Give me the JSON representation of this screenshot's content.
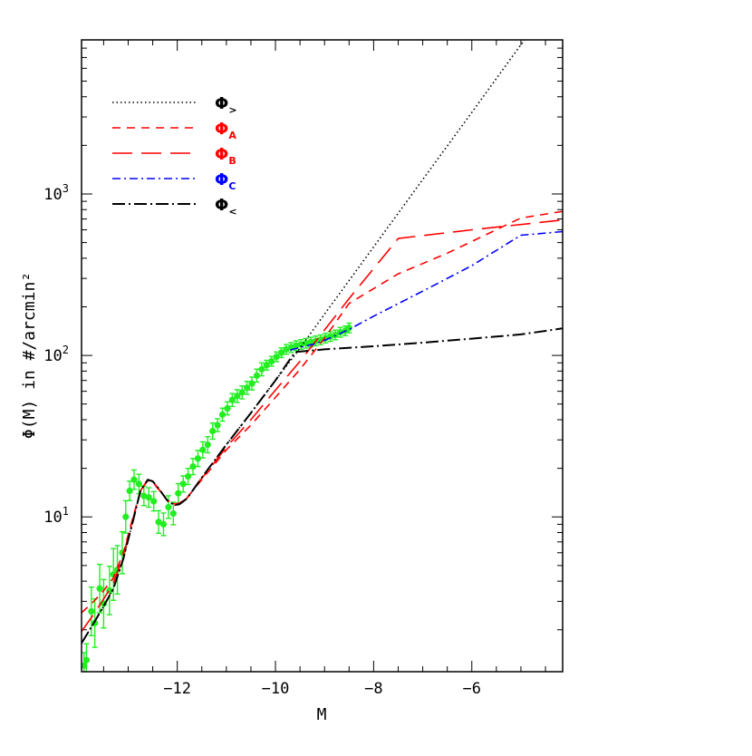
{
  "chart_data": {
    "type": "line",
    "xlabel": "M",
    "ylabel": "Φ(M) in #/arcmin²",
    "xlim": [
      -13.95,
      -4.15
    ],
    "ylim": [
      1.1,
      9000
    ],
    "yscale": "log",
    "x_tick_labels": [
      {
        "value": -12,
        "text": "−12"
      },
      {
        "value": -10,
        "text": "−10"
      },
      {
        "value": -8,
        "text": "−8"
      },
      {
        "value": -6,
        "text": "−6"
      }
    ],
    "y_tick_labels": [
      {
        "value": 10,
        "base": "10",
        "exp": "1"
      },
      {
        "value": 100,
        "base": "10",
        "exp": "2"
      },
      {
        "value": 1000,
        "base": "10",
        "exp": "3"
      }
    ],
    "legend_position": "top-left",
    "series": [
      {
        "name": "Φ",
        "sub": ">",
        "color": "#000000",
        "dash": "1.5,3",
        "width": 1.6,
        "x": [
          -13.95,
          -13.7,
          -13.5,
          -13.3,
          -13.1,
          -12.9,
          -12.75,
          -12.6,
          -12.5,
          -12.35,
          -12.2,
          -12.05,
          -11.95,
          -11.8,
          -11.5,
          -11.0,
          -10.5,
          -10.0,
          -9.6,
          -9.0,
          -8.0,
          -7.0,
          -6.0,
          -5.0,
          -4.75
        ],
        "y": [
          1.65,
          2.2,
          2.8,
          3.6,
          5.5,
          9.5,
          14.5,
          17.0,
          16.6,
          14.6,
          12.6,
          11.8,
          12.0,
          13.0,
          17.5,
          28,
          44,
          70,
          101,
          180,
          470,
          1230,
          3200,
          8400,
          10500
        ]
      },
      {
        "name": "Φ",
        "sub": "A",
        "color": "#ff0000",
        "dash": "9,7",
        "width": 1.6,
        "x": [
          -13.95,
          -13.7,
          -13.5,
          -13.3,
          -13.1,
          -12.9,
          -12.75,
          -12.6,
          -12.5,
          -12.35,
          -12.2,
          -12.05,
          -11.95,
          -11.8,
          -11.5,
          -11.0,
          -10.5,
          -10.0,
          -9.5,
          -9.0,
          -8.5,
          -7.5,
          -6.5,
          -5.0,
          -4.15
        ],
        "y": [
          2.55,
          3.0,
          3.5,
          4.2,
          6.0,
          10.0,
          14.5,
          16.8,
          16.4,
          14.4,
          12.7,
          12.0,
          12.2,
          13.2,
          17.0,
          26,
          37,
          55,
          82,
          128,
          210,
          320,
          430,
          710,
          780
        ]
      },
      {
        "name": "Φ",
        "sub": "B",
        "color": "#ff0000",
        "dash": "22,10",
        "width": 1.6,
        "x": [
          -13.95,
          -13.7,
          -13.5,
          -13.3,
          -13.1,
          -12.9,
          -12.75,
          -12.6,
          -12.5,
          -12.35,
          -12.2,
          -12.05,
          -11.95,
          -11.8,
          -11.5,
          -11.0,
          -10.5,
          -10.0,
          -9.5,
          -8.5,
          -7.5,
          -6.0,
          -4.15
        ],
        "y": [
          1.95,
          2.5,
          3.1,
          3.9,
          5.8,
          9.8,
          14.5,
          17.0,
          16.6,
          14.5,
          12.7,
          12.0,
          12.1,
          13.1,
          17.3,
          27,
          40,
          61,
          92,
          225,
          530,
          600,
          690
        ]
      },
      {
        "name": "Φ",
        "sub": "C",
        "color": "#0000ff",
        "dash": "9,4,2,4",
        "width": 1.6,
        "x": [
          -9.7,
          -9.5,
          -9.2,
          -9.0,
          -8.5,
          -8.0,
          -7.0,
          -6.0,
          -5.0,
          -4.15
        ],
        "y": [
          108,
          112,
          118,
          124,
          145,
          175,
          250,
          360,
          555,
          585
        ]
      },
      {
        "name": "Φ",
        "sub": "<",
        "color": "#000000",
        "dash": "14,4,2,4",
        "width": 2.0,
        "x": [
          -13.95,
          -13.7,
          -13.5,
          -13.3,
          -13.1,
          -12.9,
          -12.75,
          -12.6,
          -12.5,
          -12.35,
          -12.2,
          -12.05,
          -11.95,
          -11.8,
          -11.5,
          -11.0,
          -10.5,
          -10.0,
          -9.6,
          -9.0,
          -8.0,
          -7.0,
          -6.0,
          -5.0,
          -4.15
        ],
        "y": [
          1.65,
          2.2,
          2.8,
          3.6,
          5.5,
          9.5,
          14.5,
          17.0,
          16.6,
          14.6,
          12.6,
          11.8,
          12.0,
          13.0,
          17.5,
          28,
          44,
          70,
          105,
          109,
          114,
          120,
          127,
          135,
          147
        ]
      }
    ],
    "points": {
      "color": "#22ee22",
      "x": [
        -13.9,
        -13.85,
        -13.75,
        -13.68,
        -13.58,
        -13.5,
        -13.38,
        -13.3,
        -13.22,
        -13.12,
        -13.05,
        -12.97,
        -12.88,
        -12.78,
        -12.68,
        -12.58,
        -12.48,
        -12.38,
        -12.28,
        -12.18,
        -12.08,
        -11.98,
        -11.88,
        -11.78,
        -11.68,
        -11.58,
        -11.48,
        -11.38,
        -11.28,
        -11.18,
        -11.08,
        -10.98,
        -10.88,
        -10.78,
        -10.68,
        -10.58,
        -10.48,
        -10.38,
        -10.28,
        -10.18,
        -10.08,
        -9.98,
        -9.88,
        -9.78,
        -9.68,
        -9.58,
        -9.48,
        -9.38,
        -9.28,
        -9.18,
        -9.08,
        -8.98,
        -8.88,
        -8.78,
        -8.68,
        -8.58,
        -8.5
      ],
      "y": [
        1.2,
        1.3,
        2.6,
        2.2,
        3.6,
        2.9,
        3.5,
        4.4,
        4.7,
        6.0,
        10.0,
        14.5,
        17.0,
        16.0,
        13.5,
        13.2,
        12.5,
        9.3,
        9.0,
        11.5,
        10.5,
        14.0,
        16.0,
        17.8,
        20.5,
        23,
        26,
        28,
        34,
        37,
        43,
        47,
        53,
        56,
        59,
        63,
        67,
        75,
        82,
        87,
        92,
        98,
        104,
        109,
        112,
        115,
        117,
        119,
        121,
        123,
        125,
        128,
        131,
        134,
        139,
        142,
        148
      ],
      "err": [
        0.08,
        0.1,
        0.15,
        0.15,
        0.15,
        0.15,
        0.15,
        0.16,
        0.15,
        0.13,
        0.1,
        0.06,
        0.06,
        0.06,
        0.06,
        0.06,
        0.06,
        0.07,
        0.07,
        0.07,
        0.07,
        0.06,
        0.05,
        0.05,
        0.05,
        0.05,
        0.05,
        0.05,
        0.05,
        0.04,
        0.04,
        0.04,
        0.04,
        0.04,
        0.04,
        0.04,
        0.04,
        0.04,
        0.04,
        0.03,
        0.03,
        0.03,
        0.03,
        0.03,
        0.03,
        0.03,
        0.03,
        0.03,
        0.03,
        0.03,
        0.03,
        0.03,
        0.03,
        0.03,
        0.03,
        0.03,
        0.03
      ]
    }
  }
}
